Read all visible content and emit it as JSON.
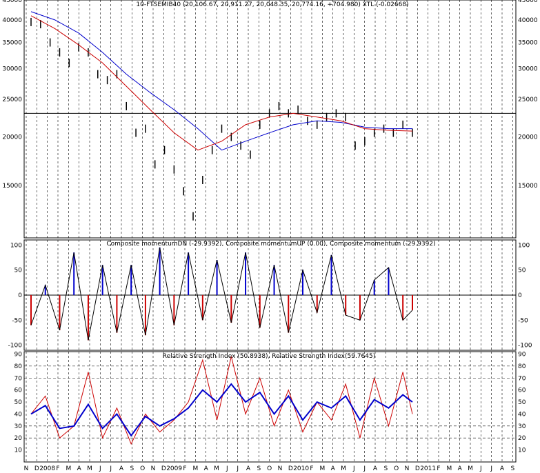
{
  "chart_data": [
    {
      "type": "line",
      "title": "10-FTSEMIB40 (20,106.67, 20,911.27, 20,048.35, 20,774.16, +704.980) XTL (-0.02668)",
      "y_scale": "log",
      "ylim": [
        11000,
        45000
      ],
      "y_ticks": [
        "45000",
        "40000",
        "35000",
        "30000",
        "25000",
        "20000",
        "15000"
      ],
      "grid": "vertical dashed",
      "horizontal_line": 23000,
      "series": [
        {
          "color": "#000000",
          "style": "bars",
          "x": [
            0,
            2,
            4,
            6,
            8,
            10,
            12,
            14,
            16,
            18,
            20,
            22,
            24,
            26,
            28,
            30,
            32,
            34,
            36,
            38
          ],
          "values": [
            39500,
            39000,
            35000,
            33000,
            31000,
            34000,
            33000,
            29000,
            28000,
            29000,
            24000,
            20500,
            21000,
            17000,
            18500,
            16500,
            14500,
            12500,
            15500,
            18500
          ]
        },
        {
          "color": "#000000",
          "style": "bars",
          "x": [
            40,
            42,
            44,
            46,
            48,
            50,
            52,
            54,
            56,
            58,
            60,
            62,
            64,
            66,
            68,
            70,
            72,
            74,
            76,
            78,
            80
          ],
          "values": [
            21000,
            20000,
            19000,
            18000,
            21500,
            23000,
            24000,
            23000,
            23500,
            22000,
            21500,
            22500,
            23000,
            22500,
            19000,
            19500,
            20500,
            21000,
            20500,
            21500,
            20500
          ]
        },
        {
          "color": "#0000cc",
          "style": "line",
          "x": [
            0,
            5,
            10,
            15,
            20,
            25,
            30,
            35,
            40,
            45,
            50,
            55,
            60,
            65,
            70,
            75,
            80
          ],
          "values": [
            42000,
            40000,
            37000,
            33000,
            29000,
            26000,
            23500,
            21000,
            18500,
            19500,
            20500,
            21500,
            22000,
            21800,
            21200,
            21000,
            21000
          ]
        },
        {
          "color": "#cc0000",
          "style": "line",
          "x": [
            0,
            5,
            10,
            15,
            20,
            25,
            30,
            35,
            40,
            45,
            50,
            55,
            60,
            65,
            70,
            75,
            80
          ],
          "values": [
            41000,
            38000,
            34500,
            31000,
            27000,
            23500,
            20500,
            18500,
            19500,
            21500,
            22500,
            23000,
            22500,
            22000,
            21000,
            20800,
            20700
          ]
        }
      ]
    },
    {
      "type": "bar",
      "title": "Composite momentumDN (-29.9392), Composite momentumUP (0.00), Composite momentum (-29.9392)",
      "ylim": [
        -110,
        110
      ],
      "y_ticks": [
        "100",
        "50",
        "0",
        "-50",
        "-100"
      ],
      "series": [
        {
          "name": "Composite momentum",
          "color": "#000000",
          "x": [
            0,
            3,
            6,
            9,
            12,
            15,
            18,
            21,
            24,
            27,
            30,
            33,
            36,
            39,
            42,
            45,
            48,
            51,
            54,
            57,
            60,
            63,
            66,
            69,
            72,
            75,
            78,
            80
          ],
          "values": [
            -60,
            20,
            -70,
            85,
            -90,
            60,
            -75,
            60,
            -80,
            95,
            -60,
            85,
            -50,
            70,
            -55,
            85,
            -65,
            60,
            -75,
            50,
            -35,
            80,
            -40,
            -50,
            30,
            55,
            -50,
            -30
          ]
        }
      ]
    },
    {
      "type": "line",
      "title": "Relative Strength Index (50.8938), Relative Strength Index(59.7645)",
      "ylim": [
        0,
        92
      ],
      "y_ticks": [
        "90",
        "80",
        "70",
        "60",
        "50",
        "40",
        "30",
        "20",
        "10"
      ],
      "horizontal_lines": [
        80,
        70,
        30,
        20
      ],
      "series": [
        {
          "color": "#cc0000",
          "x": [
            0,
            3,
            6,
            9,
            12,
            15,
            18,
            21,
            24,
            27,
            30,
            33,
            36,
            39,
            42,
            45,
            48,
            51,
            54,
            57,
            60,
            63,
            66,
            69,
            72,
            75,
            78,
            80
          ],
          "values": [
            40,
            55,
            20,
            30,
            75,
            20,
            45,
            15,
            40,
            25,
            35,
            50,
            85,
            35,
            88,
            40,
            70,
            30,
            60,
            25,
            50,
            35,
            65,
            20,
            70,
            30,
            75,
            40
          ]
        },
        {
          "color": "#0000cc",
          "x": [
            0,
            3,
            6,
            9,
            12,
            15,
            18,
            21,
            24,
            27,
            30,
            33,
            36,
            39,
            42,
            45,
            48,
            51,
            54,
            57,
            60,
            63,
            66,
            69,
            72,
            75,
            78,
            80
          ],
          "values": [
            40,
            47,
            28,
            30,
            48,
            28,
            40,
            22,
            38,
            30,
            36,
            45,
            60,
            50,
            65,
            50,
            58,
            40,
            55,
            35,
            50,
            45,
            55,
            35,
            52,
            45,
            56,
            50
          ]
        }
      ]
    }
  ],
  "x_axis": {
    "labels": [
      "N",
      "D",
      "2008",
      "F",
      "M",
      "A",
      "M",
      "J",
      "J",
      "A",
      "S",
      "O",
      "N",
      "D",
      "2009",
      "F",
      "M",
      "A",
      "M",
      "J",
      "J",
      "A",
      "S",
      "O",
      "N",
      "D",
      "2010",
      "F",
      "M",
      "A",
      "M",
      "J",
      "J",
      "A",
      "S",
      "O",
      "N",
      "D",
      "2011",
      "F",
      "M",
      "A",
      "M",
      "J",
      "J",
      "A",
      "S"
    ]
  }
}
